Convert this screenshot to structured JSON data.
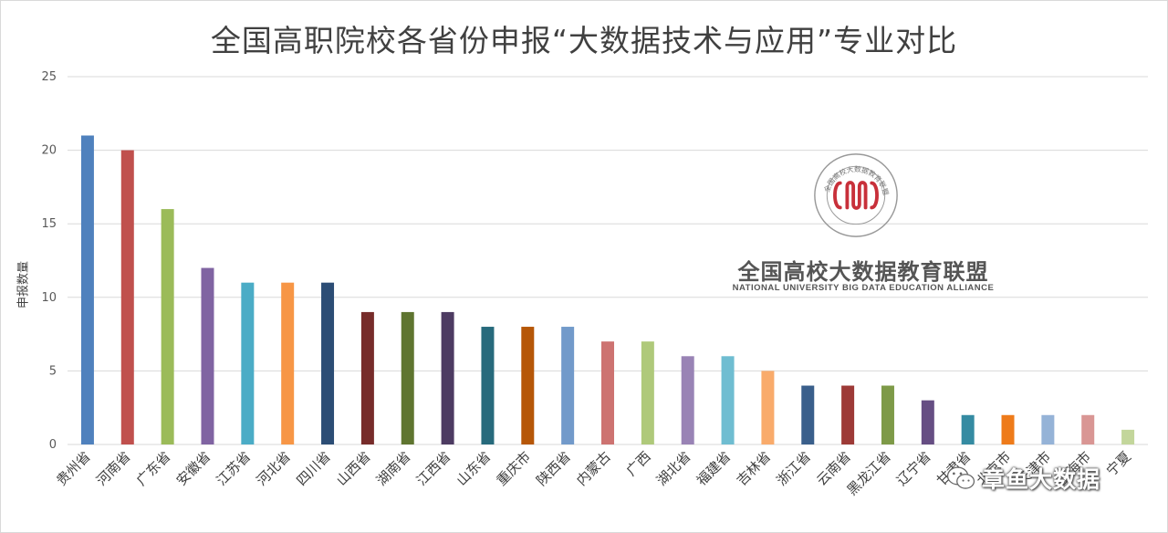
{
  "chart_data": {
    "type": "bar",
    "title": "全国高职院校各省份申报“大数据技术与应用”专业对比",
    "ylabel": "申报数量",
    "xlabel": "",
    "ylim": [
      0,
      25
    ],
    "yticks": [
      0,
      5,
      10,
      15,
      20,
      25
    ],
    "grid": true,
    "categories": [
      "贵州省",
      "河南省",
      "广东省",
      "安徽省",
      "江苏省",
      "河北省",
      "四川省",
      "山西省",
      "湖南省",
      "江西省",
      "山东省",
      "重庆市",
      "陕西省",
      "内蒙古",
      "广西",
      "湖北省",
      "福建省",
      "吉林省",
      "浙江省",
      "云南省",
      "黑龙江省",
      "辽宁省",
      "甘肃省",
      "北京市",
      "天津市",
      "上海市",
      "宁夏"
    ],
    "values": [
      21,
      20,
      16,
      12,
      11,
      11,
      11,
      9,
      9,
      9,
      8,
      8,
      8,
      7,
      7,
      6,
      6,
      5,
      4,
      4,
      4,
      3,
      2,
      2,
      2,
      2,
      1
    ],
    "colors": [
      "#4f81bd",
      "#c0504d",
      "#9bbb59",
      "#8064a2",
      "#4bacc6",
      "#f79646",
      "#2c4d75",
      "#772c2a",
      "#5f7530",
      "#4d3b62",
      "#276a7c",
      "#b65708",
      "#729aca",
      "#cd7371",
      "#afc97a",
      "#9983b5",
      "#6fbdd1",
      "#f9ab6b",
      "#3a5f8b",
      "#9d3a37",
      "#7e9a48",
      "#664e83",
      "#358ba2",
      "#ee7b1a",
      "#95b3d7",
      "#d99694",
      "#c3d69b"
    ]
  },
  "logo": {
    "name_cn": "全国高校大数据教育联盟",
    "name_en": "NATIONAL UNIVERSITY BIG DATA EDUCATION ALLIANCE",
    "seal_text": "全国高校大数据教育联盟"
  },
  "watermark": {
    "text": "章鱼大数据",
    "icon": "wechat-icon"
  }
}
